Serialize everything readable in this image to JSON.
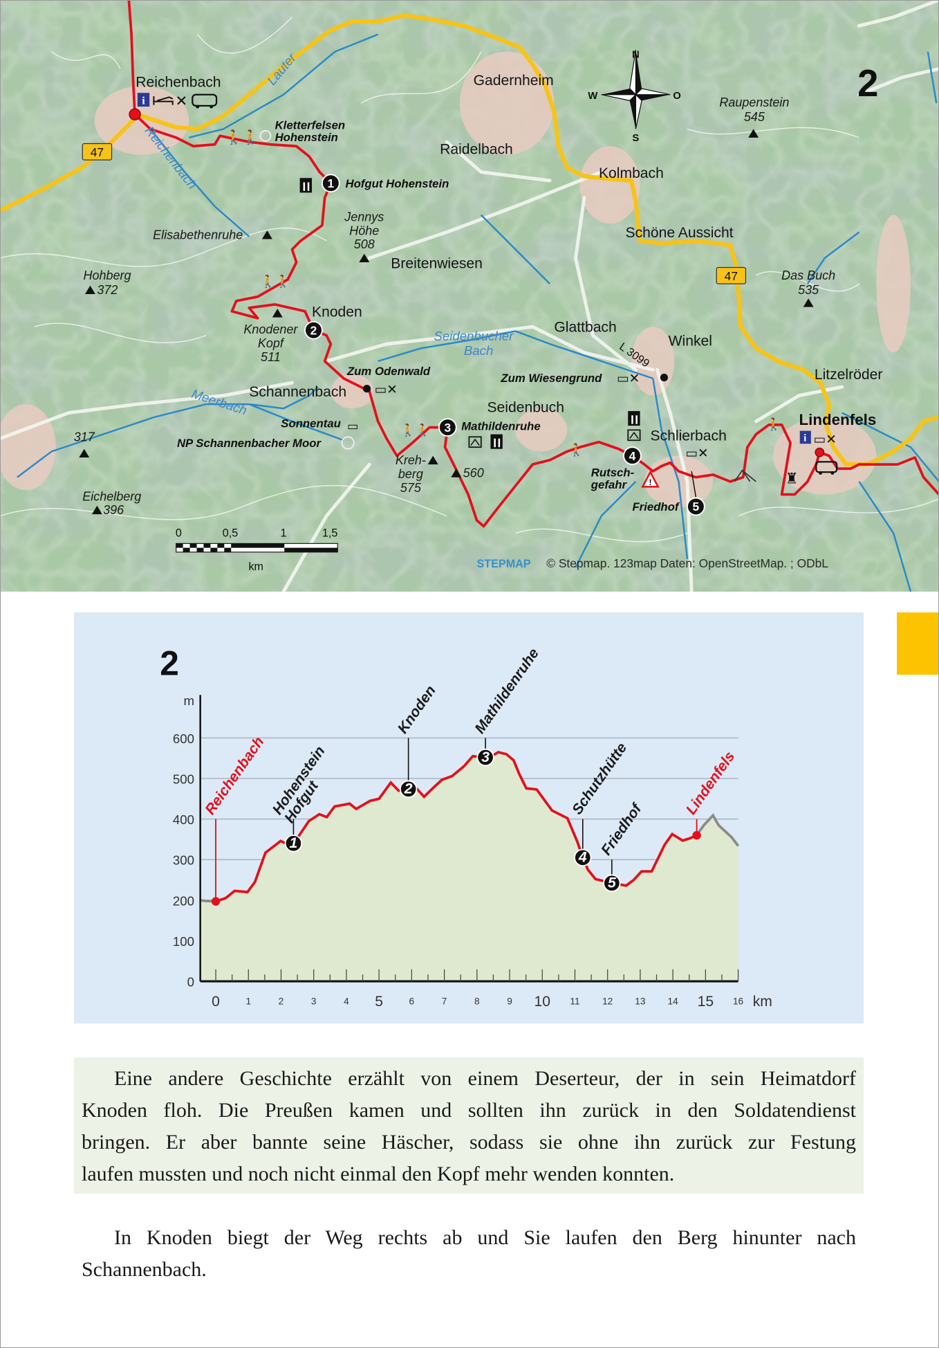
{
  "map": {
    "route_number": "2",
    "towns": {
      "reichenbach": "Reichenbach",
      "gadernheim": "Gadernheim",
      "raidelbach": "Raidelbach",
      "kolmbach": "Kolmbach",
      "schoene_aussicht": "Schöne Aussicht",
      "breitenwiesen": "Breitenwiesen",
      "knoden": "Knoden",
      "glattbach": "Glattbach",
      "winkel": "Winkel",
      "litzelroeder": "Litzelröder",
      "schannenbach": "Schannenbach",
      "seidenbuch": "Seidenbuch",
      "schlierbach": "Schlierbach",
      "lindenfels": "Lindenfels"
    },
    "peaks": {
      "raupenstein": {
        "name": "Raupenstein",
        "elevation": "545"
      },
      "das_buch": {
        "name": "Das Buch",
        "elevation": "535"
      },
      "hohberg": {
        "name": "Hohberg",
        "elevation": "372"
      },
      "jennys_hoehe": {
        "line1": "Jennys",
        "line2": "Höhe",
        "elevation": "508"
      },
      "elisabethenruhe": {
        "name": "Elisabethenruhe"
      },
      "knodener_kopf": {
        "line1": "Knodener",
        "line2": "Kopf",
        "elevation": "511"
      },
      "p317": {
        "elevation": "317"
      },
      "eichelberg": {
        "name": "Eichelberg",
        "elevation": "396"
      },
      "krehberg": {
        "line1": "Kreh-",
        "line2": "berg",
        "elevation": "575"
      },
      "p560": {
        "elevation": "560"
      }
    },
    "pois": {
      "kletterfelsen": {
        "line1": "Kletterfelsen",
        "line2": "Hohenstein"
      },
      "hofgut": "Hofgut Hohenstein",
      "zum_odenwald": "Zum Odenwald",
      "sonnentau": "Sonnentau",
      "np_moor": "NP Schannenbacher Moor",
      "mathildenruhe": "Mathildenruhe",
      "zum_wiesengrund": "Zum Wiesengrund",
      "rutschgefahr": {
        "line1": "Rutsch-",
        "line2": "gefahr"
      },
      "friedhof": "Friedhof"
    },
    "waters": {
      "lauter": "Lauter",
      "reichenbach": "Reichenbach",
      "meerbach": "Meerbach",
      "seidenbucher": {
        "line1": "Seidenbucher",
        "line2": "Bach"
      }
    },
    "roads": {
      "b47": "47",
      "l3099": "L 3099"
    },
    "waypoints": [
      "1",
      "2",
      "3",
      "4",
      "5"
    ],
    "compass": {
      "n": "N",
      "s": "S",
      "w": "W",
      "o": "O"
    },
    "scale": {
      "ticks": [
        "0",
        "0,5",
        "1",
        "1,5"
      ],
      "unit": "km"
    },
    "credit": {
      "brand": "STEPMAP",
      "text": "© Stepmap. 123map  Daten: OpenStreetMap. ; ODbL"
    },
    "colors": {
      "route": "#e3101c",
      "main_road": "#f7c318",
      "water": "#2a8ac8",
      "terrain": "#a7c5a3",
      "settlement": "#e7c9c1",
      "info": "#2c3a96"
    }
  },
  "chart_data": {
    "type": "area",
    "title": "2",
    "xlabel": "km",
    "ylabel": "m",
    "xlim": [
      -0.5,
      16
    ],
    "ylim": [
      0,
      700
    ],
    "x_ticks": [
      0,
      1,
      2,
      3,
      4,
      5,
      6,
      7,
      8,
      9,
      10,
      11,
      12,
      13,
      14,
      15,
      16
    ],
    "x_major_ticks": [
      0,
      5,
      10,
      15
    ],
    "y_ticks": [
      0,
      100,
      200,
      300,
      400,
      500,
      600
    ],
    "grid": true,
    "route_start_km": 0,
    "route_end_km": 14.73,
    "points": [
      [
        -0.5,
        200
      ],
      [
        -0.3,
        198
      ],
      [
        0,
        197
      ],
      [
        0.3,
        205
      ],
      [
        0.58,
        223
      ],
      [
        0.97,
        220
      ],
      [
        1.2,
        245
      ],
      [
        1.52,
        317
      ],
      [
        1.99,
        346
      ],
      [
        2.2,
        338
      ],
      [
        2.38,
        340
      ],
      [
        2.6,
        365
      ],
      [
        2.85,
        395
      ],
      [
        3.17,
        412
      ],
      [
        3.4,
        405
      ],
      [
        3.64,
        431
      ],
      [
        4.1,
        438
      ],
      [
        4.3,
        425
      ],
      [
        4.73,
        445
      ],
      [
        5.0,
        450
      ],
      [
        5.36,
        490
      ],
      [
        5.6,
        470
      ],
      [
        5.9,
        474
      ],
      [
        6.1,
        480
      ],
      [
        6.38,
        455
      ],
      [
        6.7,
        480
      ],
      [
        6.93,
        497
      ],
      [
        7.24,
        506
      ],
      [
        7.6,
        530
      ],
      [
        7.87,
        555
      ],
      [
        8.26,
        552
      ],
      [
        8.45,
        555
      ],
      [
        8.65,
        565
      ],
      [
        8.9,
        560
      ],
      [
        9.12,
        545
      ],
      [
        9.3,
        510
      ],
      [
        9.51,
        476
      ],
      [
        9.83,
        473
      ],
      [
        10.3,
        421
      ],
      [
        10.77,
        402
      ],
      [
        11.08,
        343
      ],
      [
        11.24,
        305
      ],
      [
        11.4,
        275
      ],
      [
        11.63,
        252
      ],
      [
        12.13,
        242
      ],
      [
        12.57,
        236
      ],
      [
        12.8,
        250
      ],
      [
        13.04,
        271
      ],
      [
        13.35,
        271
      ],
      [
        13.75,
        337
      ],
      [
        13.98,
        363
      ],
      [
        14.3,
        347
      ],
      [
        14.5,
        352
      ],
      [
        14.73,
        360
      ],
      [
        14.95,
        385
      ],
      [
        15.23,
        409
      ],
      [
        15.4,
        385
      ],
      [
        15.6,
        370
      ],
      [
        15.8,
        355
      ],
      [
        16,
        334
      ]
    ],
    "markers": [
      {
        "kind": "endpoint",
        "label": [
          "Reichenbach"
        ],
        "km": 0,
        "m": 197
      },
      {
        "kind": "waypoint",
        "number": "1",
        "label": [
          "Hofgut",
          "Hohenstein"
        ],
        "km": 2.38,
        "m": 340
      },
      {
        "kind": "waypoint",
        "number": "2",
        "label": [
          "Knoden"
        ],
        "km": 5.9,
        "m": 474
      },
      {
        "kind": "waypoint",
        "number": "3",
        "label": [
          "Mathildenruhe"
        ],
        "km": 8.26,
        "m": 552
      },
      {
        "kind": "waypoint",
        "number": "4",
        "label": [
          "Schutzhütte"
        ],
        "km": 11.24,
        "m": 305
      },
      {
        "kind": "waypoint",
        "number": "5",
        "label": [
          "Friedhof"
        ],
        "km": 12.13,
        "m": 242
      },
      {
        "kind": "endpoint",
        "label": [
          "Lindenfels"
        ],
        "km": 14.73,
        "m": 360
      }
    ],
    "colors": {
      "route": "#e3101c",
      "off_route": "#8a8a8a",
      "fill": "#dfe9cf",
      "background": "#dce9f6",
      "grid": "#aab4bf",
      "label": "#1a1a1a",
      "endpoint_label": "#e3101c"
    }
  },
  "text": {
    "paragraph1": [
      "Eine andere Geschichte erzählt von einem Deserteur, der in sein Heimatdorf",
      "Knoden floh. Die Preußen kamen und sollten ihn zurück in den Soldatendienst",
      "bringen. Er aber bannte seine Häscher, sodass sie ohne ihn zurück zur Festung",
      "laufen mussten und noch nicht einmal den Kopf mehr wenden konnten."
    ],
    "paragraph2": [
      "In Knoden biegt der Weg rechts ab und Sie laufen den Berg hinunter nach",
      "Schannenbach."
    ]
  }
}
